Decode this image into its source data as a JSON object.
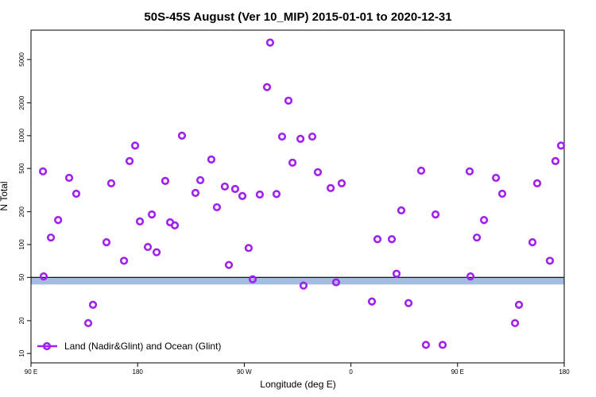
{
  "chart_data": {
    "type": "scatter",
    "title": "50S-45S August (Ver 10_MIP)   2015-01-01 to 2020-12-31",
    "x_label": "Longitude (deg E)",
    "y_label": "N Total",
    "log_y": true,
    "legend_position": "bottom-left",
    "xlim": [
      90,
      540
    ],
    "ylim": [
      8.2,
      9300
    ],
    "xticks": [
      {
        "value": 90,
        "label": "90 E"
      },
      {
        "value": 180,
        "label": "180"
      },
      {
        "value": 270,
        "label": "90 W"
      },
      {
        "value": 360,
        "label": "0"
      },
      {
        "value": 450,
        "label": "90 E"
      },
      {
        "value": 540,
        "label": "180"
      }
    ],
    "yticks": [
      10,
      20,
      50,
      100,
      200,
      500,
      1000,
      2000,
      5000
    ],
    "reference_line": 50,
    "reference_band": [
      43,
      50
    ],
    "band_color": "#a3bde0",
    "series": [
      {
        "name": "Land (Nadir&Glint) and Ocean (Glint)",
        "color": "#a020f0",
        "x": [
          100.1,
          100.7,
          106.8,
          112.9,
          122.2,
          128.2,
          138.3,
          142.3,
          153.7,
          157.7,
          168.5,
          173.2,
          177.9,
          181.9,
          188.6,
          192,
          196,
          203.3,
          207.4,
          211.4,
          217.4,
          228.8,
          232.9,
          242.2,
          246.9,
          253.6,
          257,
          262.3,
          268.4,
          273.7,
          277.1,
          283.1,
          289.2,
          291.8,
          297.2,
          301.9,
          307.3,
          310.7,
          317.4,
          320,
          327.4,
          332.1,
          342.9,
          347.5,
          352.2,
          377.7,
          382.4,
          394.5,
          398.5,
          402.5,
          408.6,
          419.3,
          423.3,
          431.4,
          437.4,
          460.2,
          460.9,
          466.3,
          472.3,
          482.4,
          487.7,
          498.5,
          501.8,
          513.2,
          517.2,
          527.9,
          532.6,
          537.3
        ],
        "values": [
          470,
          51,
          116,
          168,
          410,
          293,
          19,
          28,
          105,
          365,
          71,
          584,
          810,
          163,
          95,
          189,
          85,
          384,
          160,
          150,
          1000,
          298,
          390,
          604,
          220,
          341,
          65,
          324,
          279,
          93,
          48,
          288,
          2790,
          7150,
          291,
          980,
          2095,
          565,
          935,
          42,
          980,
          462,
          330,
          45,
          365,
          30,
          112,
          112,
          54,
          206,
          29,
          477,
          12,
          189,
          12,
          470,
          51,
          116,
          168,
          410,
          293,
          19,
          28,
          105,
          365,
          71,
          584,
          810
        ]
      }
    ]
  }
}
